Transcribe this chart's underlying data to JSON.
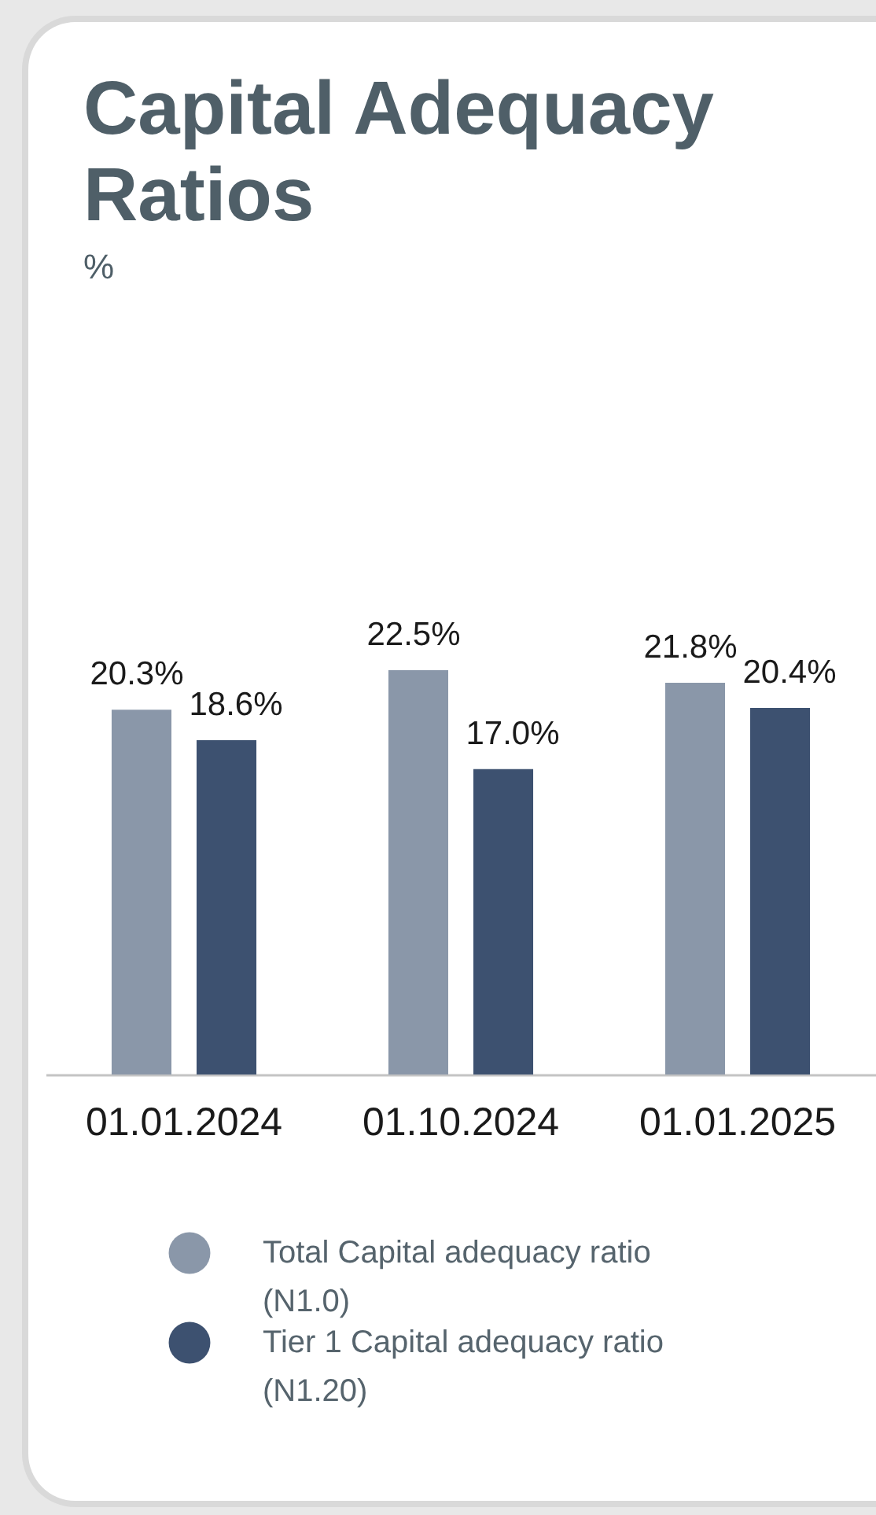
{
  "chart_data": {
    "type": "bar",
    "title": "Capital Adequacy Ratios",
    "subtitle": "%",
    "categories": [
      "01.01.2024",
      "01.10.2024",
      "01.01.2025"
    ],
    "series": [
      {
        "name": "Total Capital adequacy ratio (N1.0)",
        "color": "#8a97a9",
        "values": [
          20.3,
          22.5,
          21.8
        ],
        "value_labels": [
          "20.3%",
          "22.5%",
          "21.8%"
        ]
      },
      {
        "name": "Tier 1 Capital adequacy ratio (N1.20)",
        "color": "#3d5170",
        "values": [
          18.6,
          17.0,
          20.4
        ],
        "value_labels": [
          "18.6%",
          "17.0%",
          "20.4%"
        ]
      }
    ],
    "legend": "bottom"
  }
}
